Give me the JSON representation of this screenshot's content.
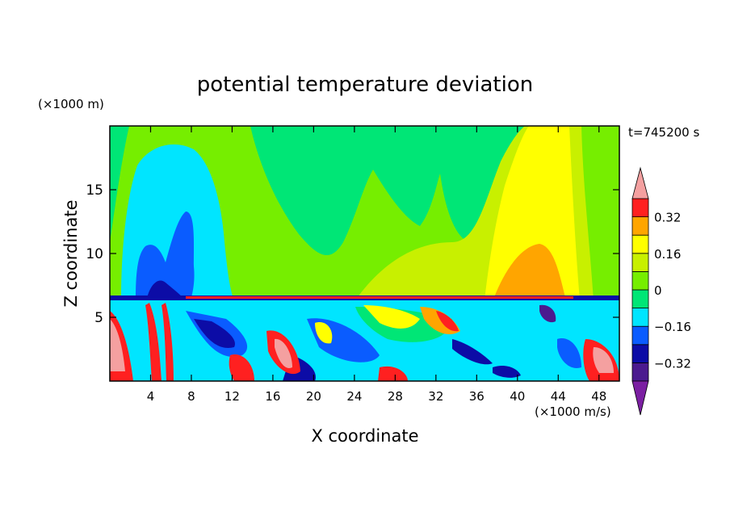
{
  "chart_data": {
    "type": "heatmap",
    "title": "potential temperature deviation",
    "xlabel": "X coordinate",
    "ylabel": "Z coordinate",
    "x_unit": "(×1000 m/s)",
    "y_unit": "(×1000 m)",
    "time_label": "t=745200 s",
    "xlim": [
      0,
      50
    ],
    "ylim": [
      0,
      20
    ],
    "x_ticks": [
      4,
      8,
      12,
      16,
      20,
      24,
      28,
      32,
      36,
      40,
      44,
      48
    ],
    "y_ticks": [
      5,
      10,
      15
    ],
    "colorbar": {
      "levels": [
        -0.4,
        -0.32,
        -0.24,
        -0.16,
        -0.08,
        0,
        0.08,
        0.16,
        0.24,
        0.32,
        0.4
      ],
      "tick_labels": [
        "0.32",
        "0.16",
        "0",
        "−0.16",
        "−0.32"
      ],
      "tick_values": [
        0.32,
        0.16,
        0,
        -0.16,
        -0.32
      ],
      "colors": [
        "#7b1fa2",
        "#4b1a8f",
        "#0c0ca6",
        "#0a5cff",
        "#00e5ff",
        "#00e676",
        "#76ee00",
        "#c8f000",
        "#ffff00",
        "#ffa500",
        "#ff2020",
        "#f4a0a0"
      ],
      "extend": "both"
    }
  }
}
